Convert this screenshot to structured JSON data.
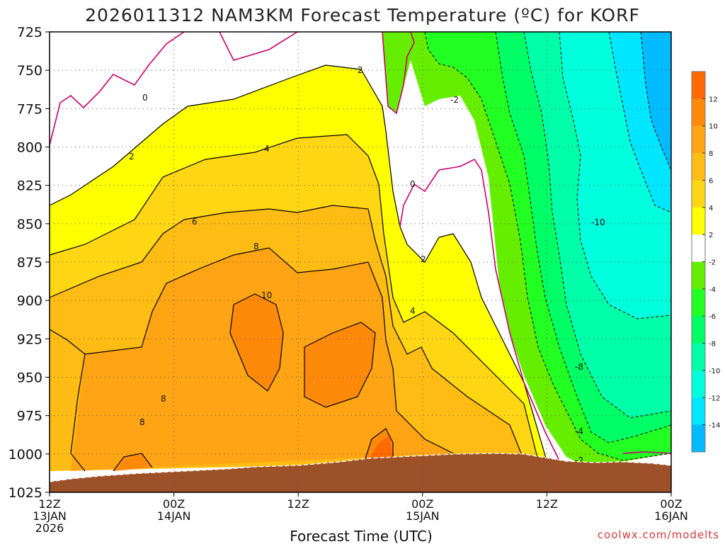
{
  "chart_data": {
    "type": "heatmap",
    "title": "2026011312 NAM3KM Forecast Temperature (ºC) for KORF",
    "xlabel": "Forecast Time (UTC)",
    "ylabel": "",
    "y_axis": {
      "label": "",
      "scale": "pressure (inverted)",
      "range": [
        1025,
        725
      ],
      "ticks": [
        "725",
        "750",
        "775",
        "800",
        "825",
        "850",
        "875",
        "900",
        "925",
        "950",
        "975",
        "1000",
        "1025"
      ]
    },
    "x_axis": {
      "range": [
        "2026-01-13 12Z",
        "2026-01-16 00Z"
      ],
      "ticks": [
        {
          "line1": "12Z",
          "line2": "13JAN",
          "line3": "2026"
        },
        {
          "line1": "00Z",
          "line2": "14JAN",
          "line3": ""
        },
        {
          "line1": "12Z",
          "line2": "",
          "line3": ""
        },
        {
          "line1": "00Z",
          "line2": "15JAN",
          "line3": ""
        },
        {
          "line1": "12Z",
          "line2": "",
          "line3": ""
        },
        {
          "line1": "00Z",
          "line2": "16JAN",
          "line3": ""
        }
      ]
    },
    "grid": true,
    "colorbar": {
      "placement": "right",
      "ticks": [
        "12",
        "10",
        "8",
        "6",
        "4",
        "2",
        "-2",
        "-4",
        "-6",
        "-8",
        "-10",
        "-12",
        "-14"
      ],
      "bins": [
        {
          "range": [
            12,
            14
          ],
          "color": "#ff6a00"
        },
        {
          "range": [
            10,
            12
          ],
          "color": "#ff8a0a"
        },
        {
          "range": [
            8,
            10
          ],
          "color": "#ffa414"
        },
        {
          "range": [
            6,
            8
          ],
          "color": "#ffbc14"
        },
        {
          "range": [
            4,
            6
          ],
          "color": "#ffd614"
        },
        {
          "range": [
            2,
            4
          ],
          "color": "#ffff00"
        },
        {
          "range": [
            -2,
            2
          ],
          "color": "#ffffff"
        },
        {
          "range": [
            -4,
            -2
          ],
          "color": "#66ee00"
        },
        {
          "range": [
            -6,
            -4
          ],
          "color": "#22ff22"
        },
        {
          "range": [
            -8,
            -6
          ],
          "color": "#00ff66"
        },
        {
          "range": [
            -10,
            -8
          ],
          "color": "#00ffa8"
        },
        {
          "range": [
            -12,
            -10
          ],
          "color": "#00ffdd"
        },
        {
          "range": [
            -14,
            -12
          ],
          "color": "#00e6ff"
        },
        {
          "range": [
            -16,
            -14
          ],
          "color": "#00bbff"
        }
      ]
    },
    "contour_labels": [
      "0",
      "2",
      "4",
      "6",
      "8",
      "10",
      "8",
      "8",
      "2",
      "4",
      "0",
      "-2",
      "2",
      "-10",
      "-8",
      "-4",
      "-2"
    ],
    "colors": {
      "terrain": "#9c5128",
      "freezing_line": "#c8006e",
      "contour": "#000000",
      "frame": "#000000"
    }
  },
  "credit": "coolwx.com/modelts"
}
